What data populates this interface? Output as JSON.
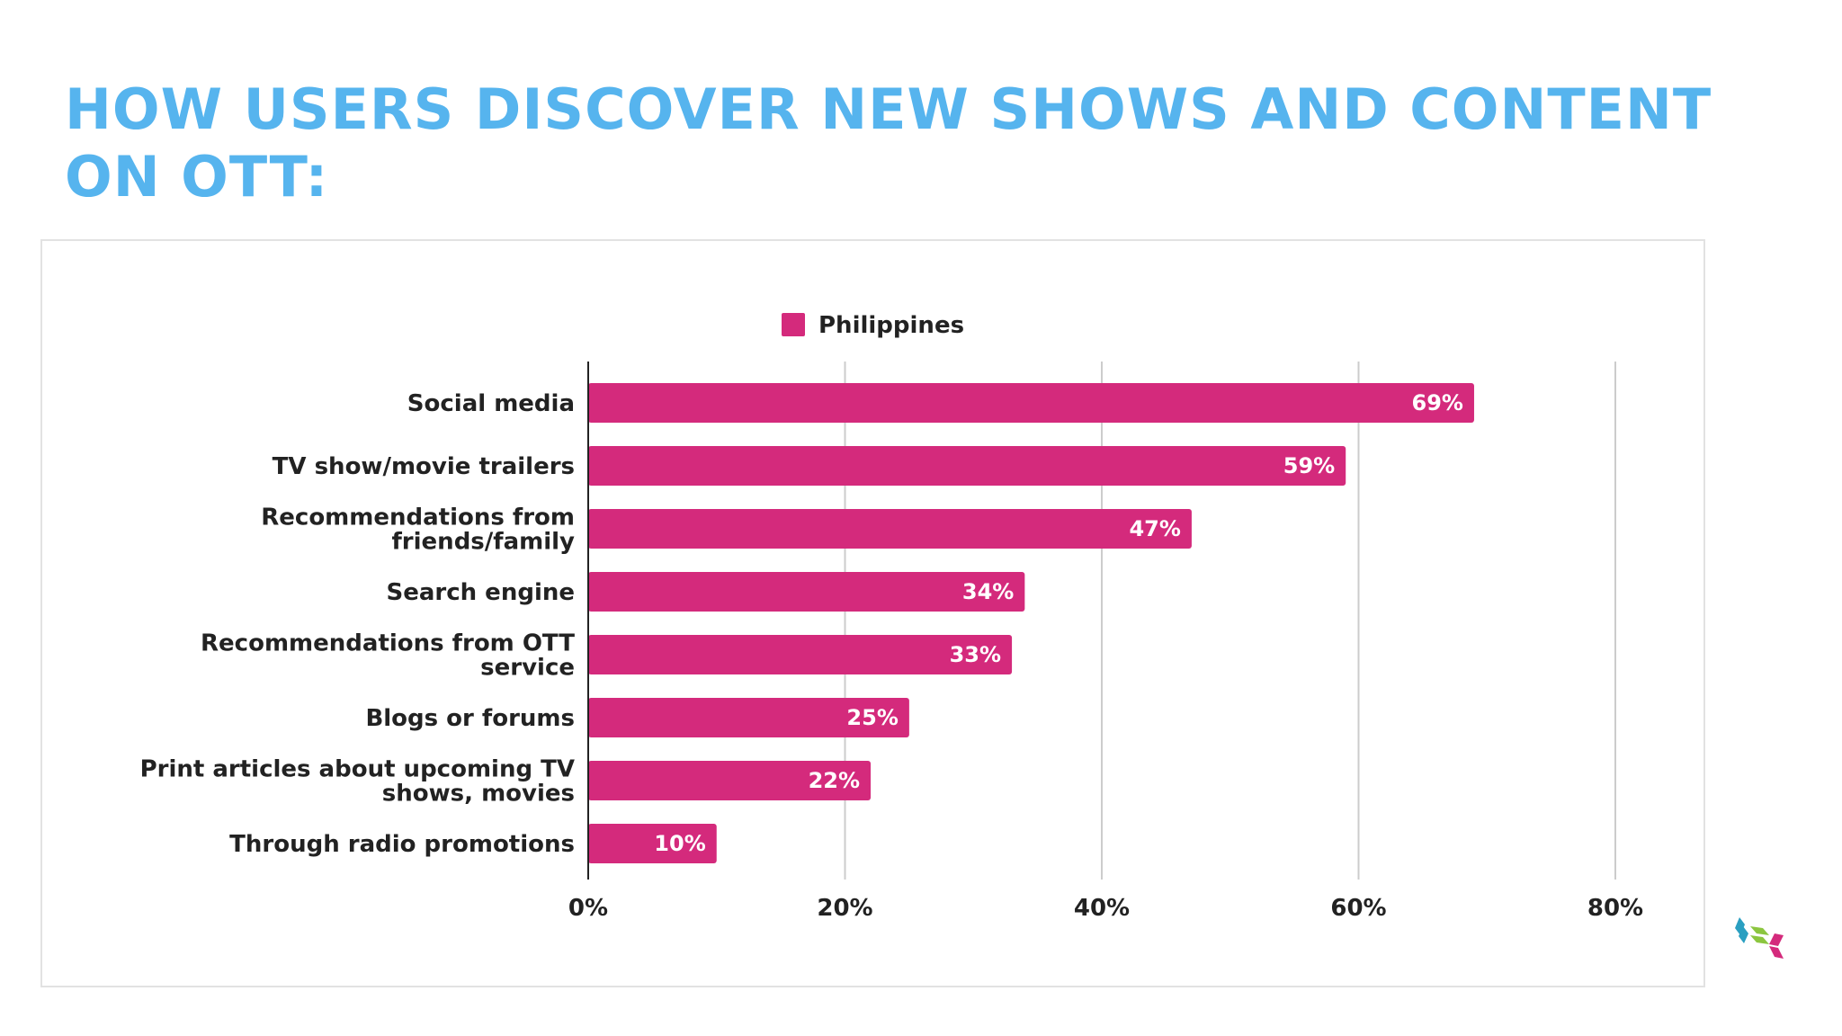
{
  "title": "HOW USERS DISCOVER NEW SHOWS AND CONTENT ON OTT:",
  "colors": {
    "title": "#56b4ee",
    "bar": "#d42a7c",
    "grid": "#cccccc",
    "axis": "#222222"
  },
  "logo": {
    "icon": "brand-logo-icon",
    "colors": [
      "#2a9fc1",
      "#8cc63f",
      "#d42a7c"
    ]
  },
  "chart_data": {
    "type": "bar",
    "orientation": "horizontal",
    "categories": [
      [
        "Social media"
      ],
      [
        "TV show/movie trailers"
      ],
      [
        "Recommendations from",
        "friends/family"
      ],
      [
        "Search engine"
      ],
      [
        "Recommendations from OTT",
        "service"
      ],
      [
        "Blogs or forums"
      ],
      [
        "Print articles about upcoming TV",
        "shows, movies"
      ],
      [
        "Through radio promotions"
      ]
    ],
    "series": [
      {
        "name": "Philippines",
        "values": [
          69,
          59,
          47,
          34,
          33,
          25,
          22,
          10
        ],
        "labels": [
          "69%",
          "59%",
          "47%",
          "34%",
          "33%",
          "25%",
          "22%",
          "10%"
        ]
      }
    ],
    "xlim": [
      0,
      80
    ],
    "xticks": [
      0,
      20,
      40,
      60,
      80
    ],
    "xtick_labels": [
      "0%",
      "20%",
      "40%",
      "60%",
      "80%"
    ],
    "grid": true,
    "legend": "top-center"
  }
}
